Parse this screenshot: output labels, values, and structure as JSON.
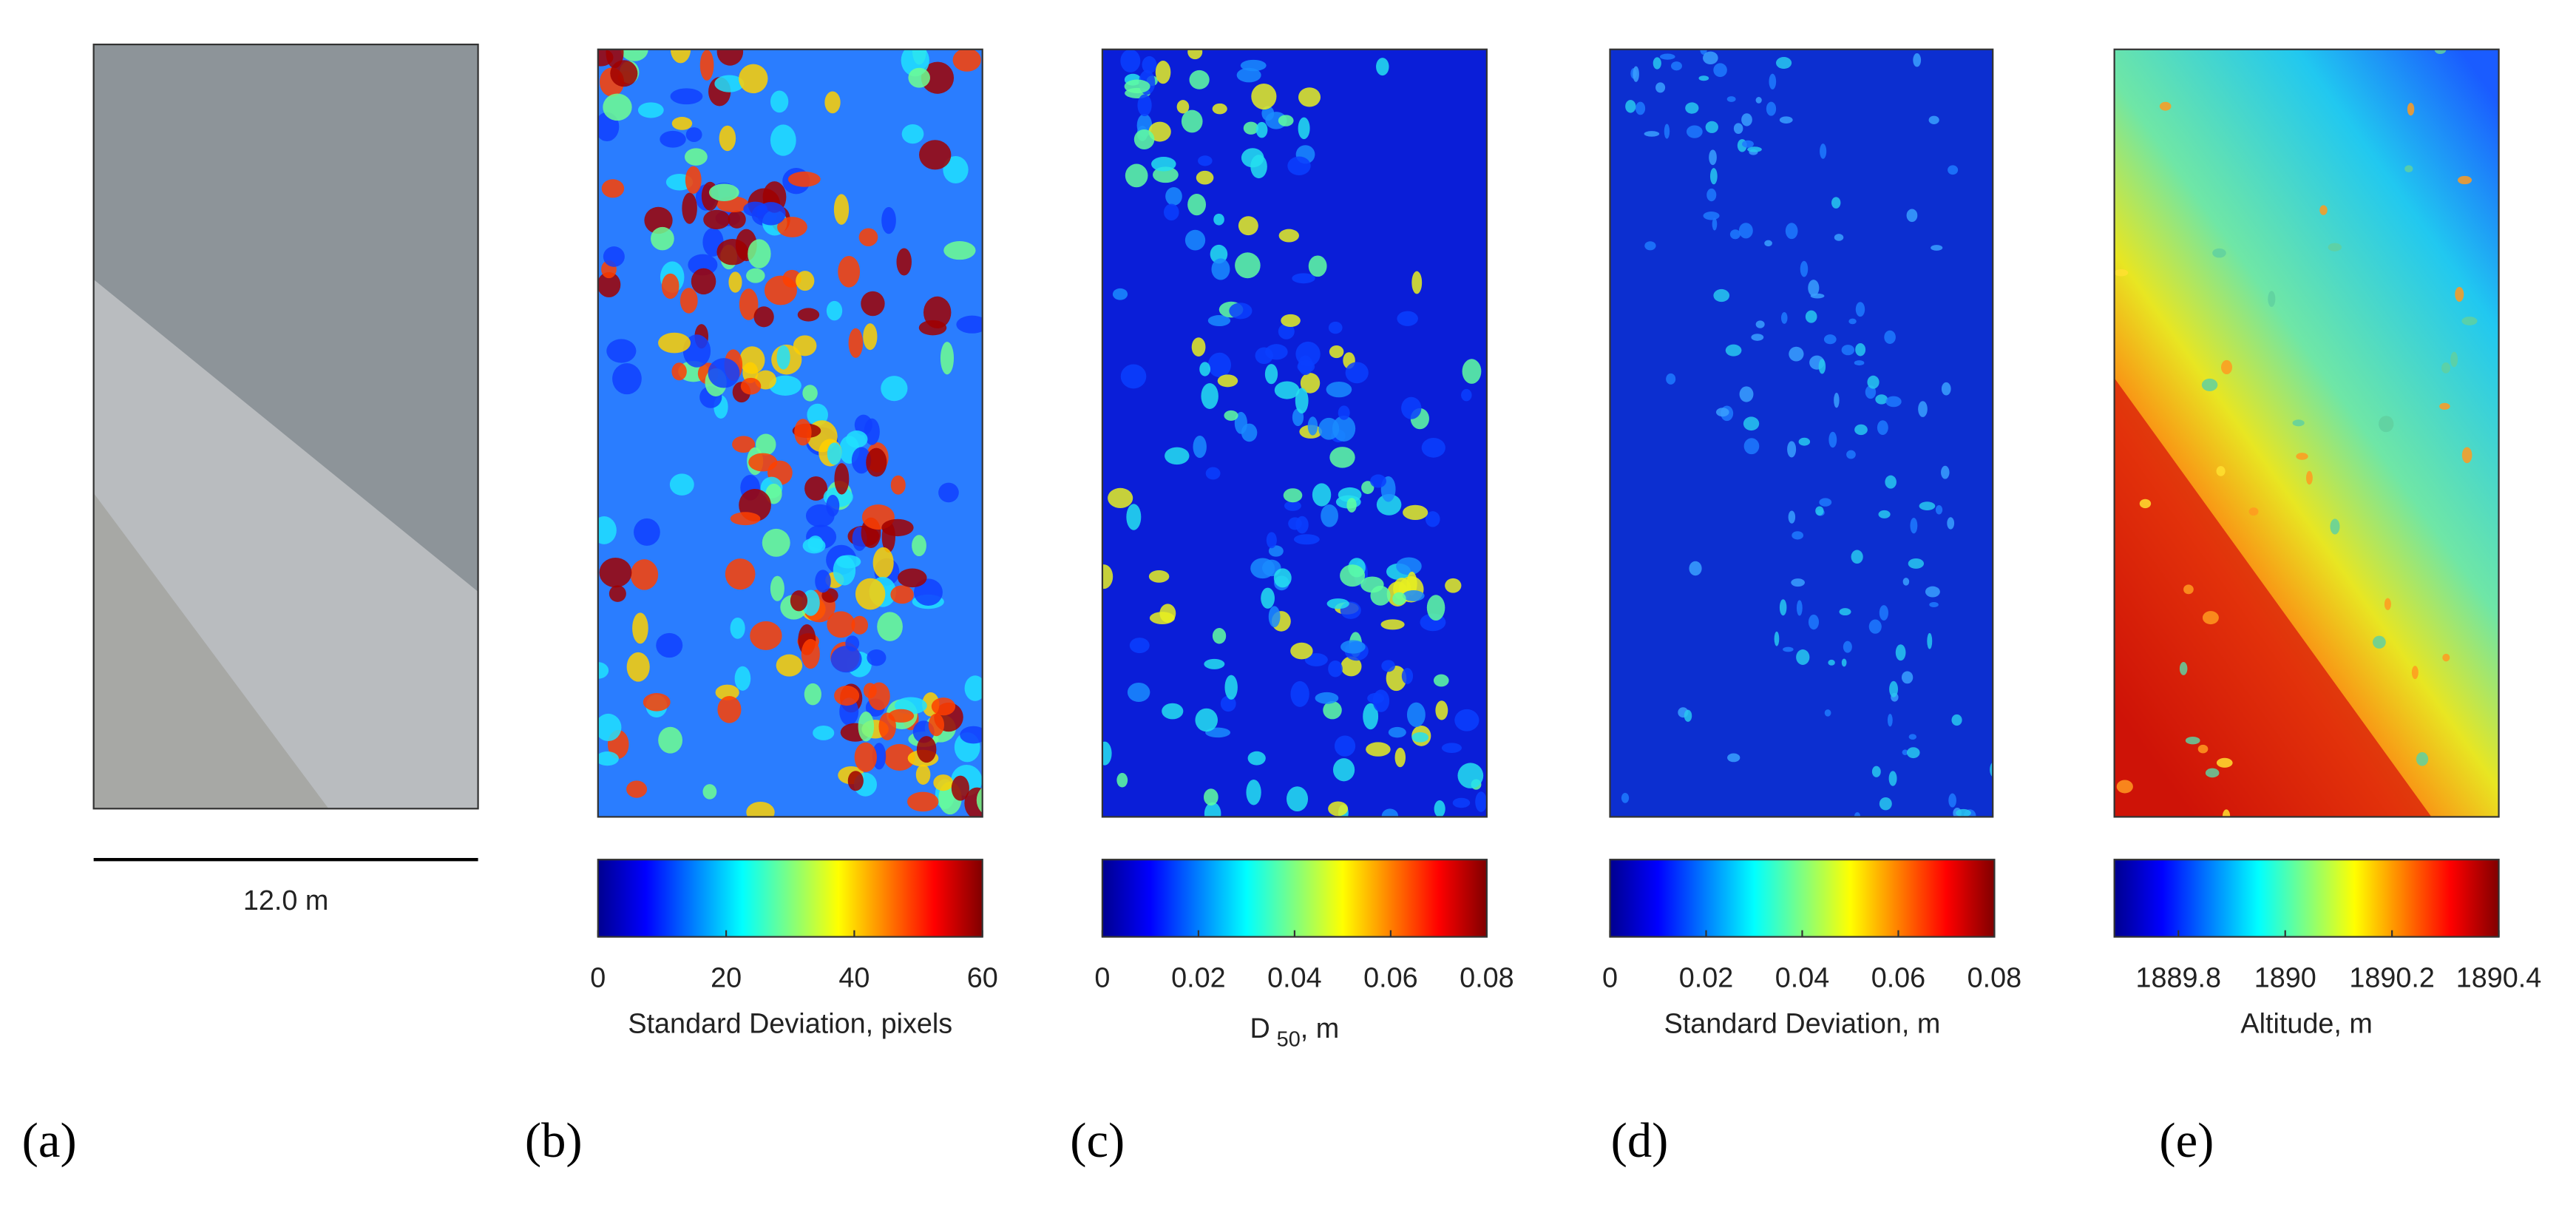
{
  "panels": [
    {
      "label": "(a)",
      "scale_bar": "12.0 m"
    },
    {
      "label": "(b)",
      "colorbar": {
        "lim": [
          0,
          60
        ],
        "ticks": [
          0,
          20,
          40,
          60
        ],
        "axis_label": "Standard Deviation, pixels"
      }
    },
    {
      "label": "(c)",
      "colorbar": {
        "lim": [
          0,
          0.08
        ],
        "ticks": [
          0,
          0.02,
          0.04,
          0.06,
          0.08
        ],
        "axis_label": {
          "base": "D",
          "subscript": "50",
          "suffix": ", m"
        }
      }
    },
    {
      "label": "(d)",
      "colorbar": {
        "lim": [
          0,
          0.08
        ],
        "ticks": [
          0,
          0.02,
          0.04,
          0.06,
          0.08
        ],
        "axis_label": "Standard Deviation, m"
      }
    },
    {
      "label": "(e)",
      "colorbar": {
        "lim": [
          1889.68,
          1890.4
        ],
        "ticks": [
          1889.8,
          1890,
          1890.2,
          1890.4
        ],
        "axis_label": "Altitude, m"
      }
    }
  ]
}
